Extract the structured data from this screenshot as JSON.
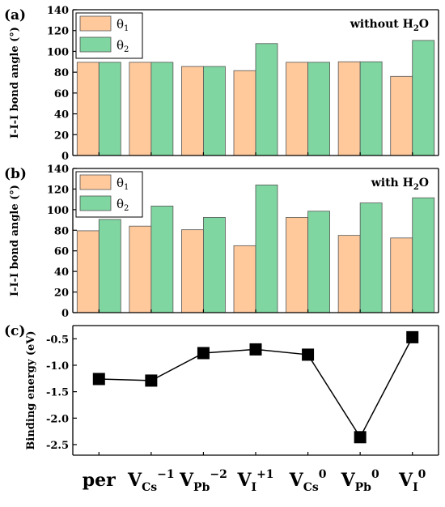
{
  "colors": {
    "theta1": "#ffc99c",
    "theta2": "#7fd6a0",
    "edge": "#555555",
    "marker": "#000000"
  },
  "categories": [
    "per",
    "V_Cs^-1",
    "V_Pb^-2",
    "V_I^+1",
    "V_Cs^0",
    "V_Pb^0",
    "V_I^0"
  ],
  "category_labels": [
    {
      "base": "per",
      "sub": "",
      "sup": ""
    },
    {
      "base": "V",
      "sub": "Cs",
      "sup": "−1"
    },
    {
      "base": "V",
      "sub": "Pb",
      "sup": "−2"
    },
    {
      "base": "V",
      "sub": "I",
      "sup": "+1"
    },
    {
      "base": "V",
      "sub": "Cs",
      "sup": "0"
    },
    {
      "base": "V",
      "sub": "Pb",
      "sup": "0"
    },
    {
      "base": "V",
      "sub": "I",
      "sup": "0"
    }
  ],
  "chart_data": [
    {
      "panel": "(a)",
      "type": "bar",
      "annotation": {
        "text": "without H",
        "sub": "2",
        "tail": "O"
      },
      "ylabel": "I-I-I bond angle (°)",
      "ylim": [
        0,
        140
      ],
      "yticks": [
        0,
        20,
        40,
        60,
        80,
        100,
        120,
        140
      ],
      "legend_position": "top-left",
      "categories": [
        "per",
        "V_Cs^-1",
        "V_Pb^-2",
        "V_I^+1",
        "V_Cs^0",
        "V_Pb^0",
        "V_I^0"
      ],
      "series": [
        {
          "name": "θ",
          "sub": "1",
          "values": [
            89.5,
            89.5,
            85.5,
            81.5,
            89.5,
            90.0,
            76.0
          ]
        },
        {
          "name": "θ",
          "sub": "2",
          "values": [
            89.5,
            89.5,
            85.5,
            107.5,
            89.5,
            90.0,
            110.5
          ]
        }
      ]
    },
    {
      "panel": "(b)",
      "type": "bar",
      "annotation": {
        "text": "with H",
        "sub": "2",
        "tail": "O"
      },
      "ylabel": "I-I-I bond angle (°)",
      "ylim": [
        0,
        140
      ],
      "yticks": [
        0,
        20,
        40,
        60,
        80,
        100,
        120,
        140
      ],
      "legend_position": "top-left",
      "categories": [
        "per",
        "V_Cs^-1",
        "V_Pb^-2",
        "V_I^+1",
        "V_Cs^0",
        "V_Pb^0",
        "V_I^0"
      ],
      "series": [
        {
          "name": "θ",
          "sub": "1",
          "values": [
            79.5,
            84.0,
            80.5,
            65.0,
            92.5,
            75.0,
            72.5
          ]
        },
        {
          "name": "θ",
          "sub": "2",
          "values": [
            90.5,
            103.5,
            92.5,
            124.0,
            98.5,
            106.5,
            111.5
          ]
        }
      ]
    },
    {
      "panel": "(c)",
      "type": "line",
      "ylabel": "Binding energy (eV)",
      "ylim": [
        -2.7,
        -0.25
      ],
      "yticks": [
        -2.5,
        -2.0,
        -1.5,
        -1.0,
        -0.5
      ],
      "ytick_labels": [
        "-2.5",
        "-2.0",
        "-1.5",
        "-1.0",
        "-0.5"
      ],
      "categories": [
        "per",
        "V_Cs^-1",
        "V_Pb^-2",
        "V_I^+1",
        "V_Cs^0",
        "V_Pb^0",
        "V_I^0"
      ],
      "marker": "square",
      "values": [
        -1.26,
        -1.29,
        -0.77,
        -0.7,
        -0.8,
        -2.36,
        -0.47
      ]
    }
  ]
}
